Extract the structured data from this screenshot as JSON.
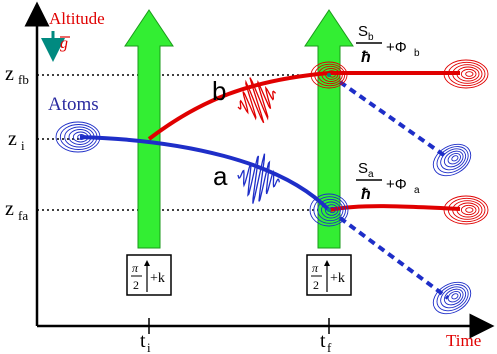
{
  "axes": {
    "y_label": "Altitude",
    "x_label": "Time",
    "z_fb": "fb",
    "z_i": "i",
    "z_fa": "fa",
    "z_letter": "z",
    "t_letter": "t",
    "t_i_sub": "i",
    "t_f_sub": "f"
  },
  "gravity": {
    "label": "g"
  },
  "atoms_label": "Atoms",
  "paths": {
    "upper": "b",
    "lower": "a"
  },
  "pulses": {
    "first": {
      "num": "π",
      "den": "2",
      "wave": "+k"
    },
    "second": {
      "num": "π",
      "den": "2",
      "wave": "+k"
    }
  },
  "phases": {
    "b": {
      "S": "S",
      "sub": "b",
      "hbar": "ħ",
      "plus": "+Φ",
      "phi_sub": "b"
    },
    "a": {
      "S": "S",
      "sub": "a",
      "hbar": "ħ",
      "plus": "+Φ",
      "phi_sub": "a"
    }
  },
  "colors": {
    "red": "#e00000",
    "blue": "#1e2ec8",
    "green": "#33ee33",
    "teal": "#008a80"
  }
}
